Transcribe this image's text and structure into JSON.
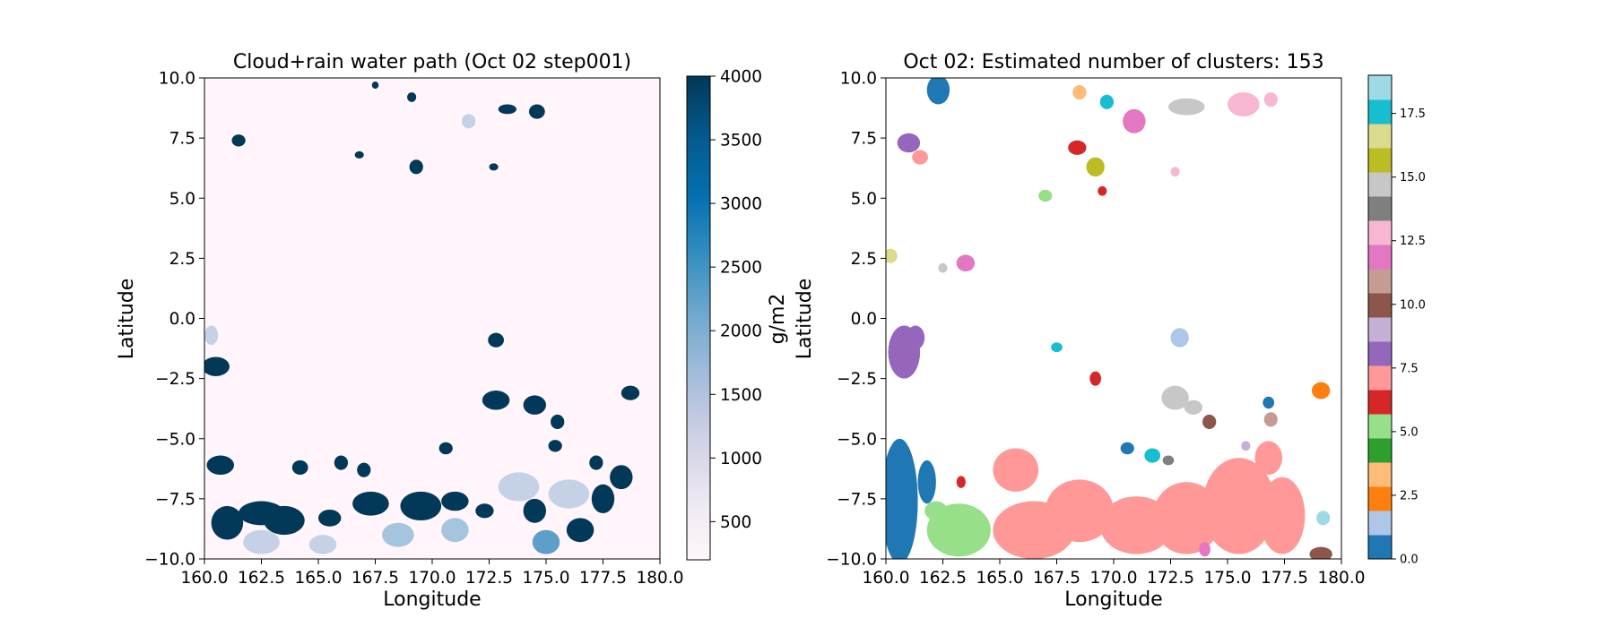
{
  "chart_data": [
    {
      "type": "heatmap",
      "title": "Cloud+rain water path (Oct 02 step001)",
      "xlabel": "Longitude",
      "ylabel": "Latitude",
      "xlim": [
        160.0,
        180.0
      ],
      "ylim": [
        -10.0,
        10.0
      ],
      "xticks": [
        "160.0",
        "162.5",
        "165.0",
        "167.5",
        "170.0",
        "172.5",
        "175.0",
        "177.5",
        "180.0"
      ],
      "yticks": [
        "10.0",
        "7.5",
        "5.0",
        "2.5",
        "0.0",
        "−2.5",
        "−5.0",
        "−7.5",
        "−10.0"
      ],
      "colorbar": {
        "label": "g/m2",
        "range": [
          200,
          4000
        ],
        "ticks": [
          "4000",
          "3500",
          "3000",
          "2500",
          "2000",
          "1500",
          "1000",
          "500"
        ],
        "colormap": "PuBu"
      }
    },
    {
      "type": "heatmap",
      "title": "Oct 02: Estimated number of clusters: 153",
      "xlabel": "Longitude",
      "ylabel": "Latitude",
      "xlim": [
        160.0,
        180.0
      ],
      "ylim": [
        -10.0,
        10.0
      ],
      "xticks": [
        "160.0",
        "162.5",
        "165.0",
        "167.5",
        "170.0",
        "172.5",
        "175.0",
        "177.5",
        "180.0"
      ],
      "yticks": [
        "10.0",
        "7.5",
        "5.0",
        "2.5",
        "0.0",
        "−2.5",
        "−5.0",
        "−7.5",
        "−10.0"
      ],
      "num_clusters": 153,
      "colorbar": {
        "range": [
          0,
          19
        ],
        "ticks": [
          "17.5",
          "15.0",
          "12.5",
          "10.0",
          "7.5",
          "5.0",
          "2.5",
          "0.0"
        ],
        "colormap": "tab20"
      }
    }
  ],
  "colors": {
    "tab20": [
      "#1f77b4",
      "#aec7e8",
      "#ff7f0e",
      "#ffbb78",
      "#2ca02c",
      "#98df8a",
      "#d62728",
      "#ff9896",
      "#9467bd",
      "#c5b0d5",
      "#8c564b",
      "#c49c94",
      "#e377c2",
      "#f7b6d2",
      "#7f7f7f",
      "#c7c7c7",
      "#bcbd22",
      "#dbdb8d",
      "#17becf",
      "#9edae5"
    ],
    "pubu": [
      "#fff7fb",
      "#ece7f2",
      "#d0d1e6",
      "#a6bddb",
      "#74a9cf",
      "#3690c0",
      "#0570b0",
      "#045a8d",
      "#023858"
    ]
  }
}
